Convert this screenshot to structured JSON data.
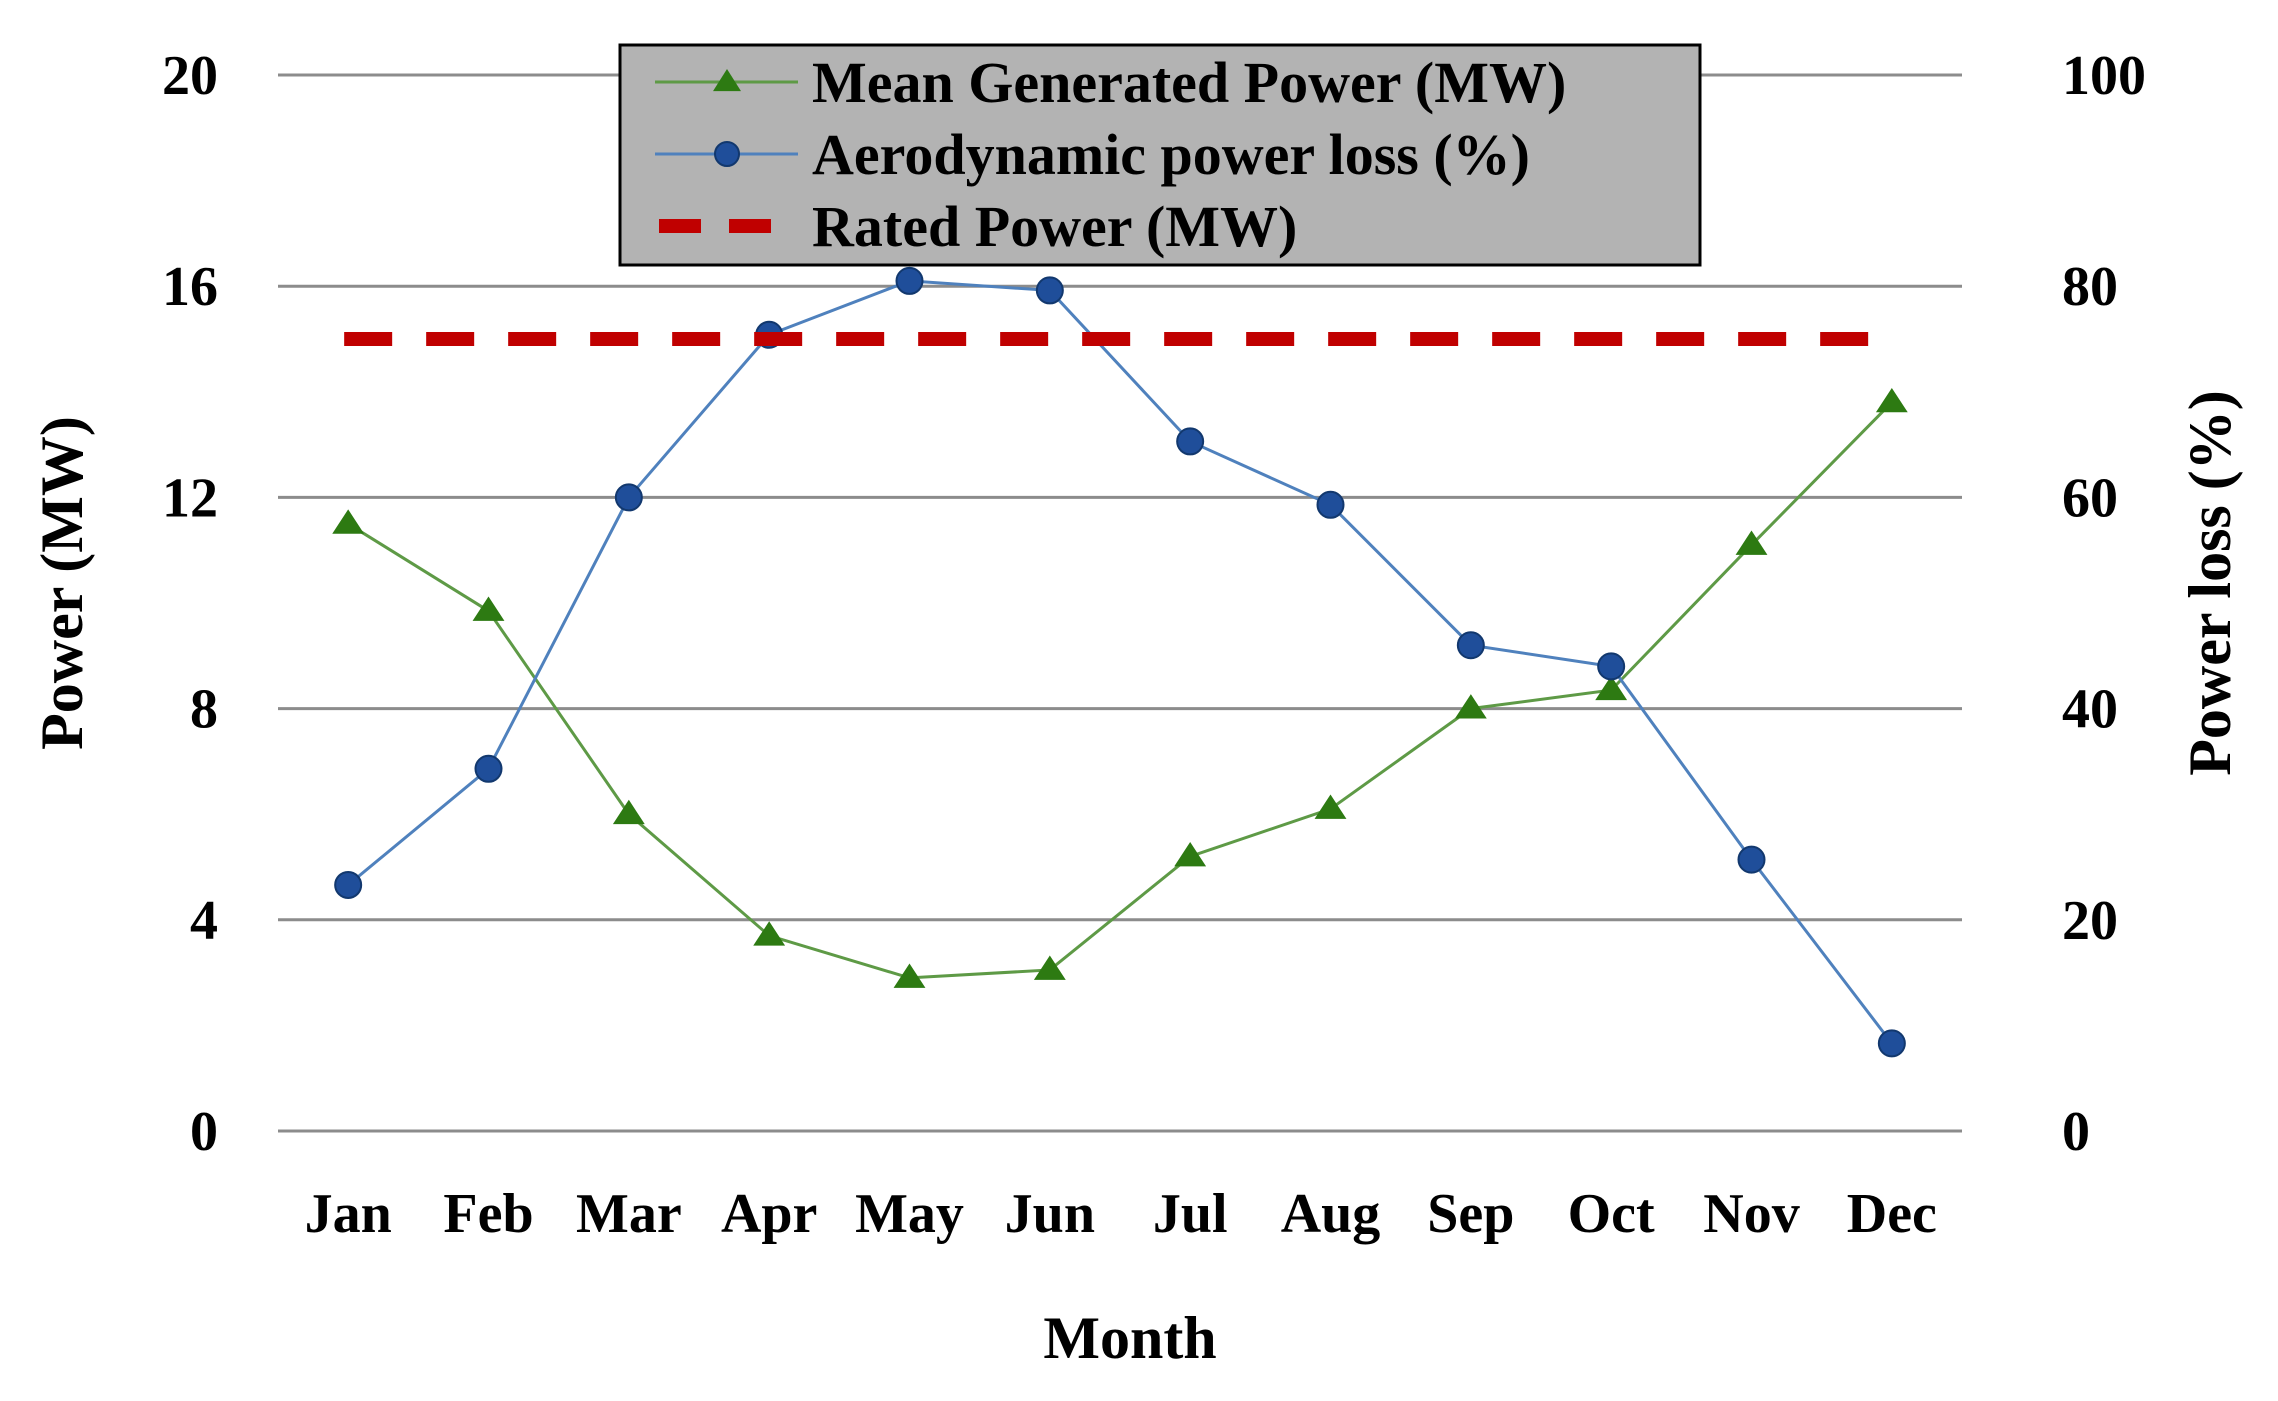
{
  "chart_data": {
    "type": "line",
    "categories": [
      "Jan",
      "Feb",
      "Mar",
      "Apr",
      "May",
      "Jun",
      "Jul",
      "Aug",
      "Sep",
      "Oct",
      "Nov",
      "Dec"
    ],
    "xlabel": "Month",
    "ylabel": "Power (MW)",
    "y2label": "Power loss (%)",
    "ylim": [
      0,
      20
    ],
    "y2lim": [
      0,
      100
    ],
    "yticks": [
      "0",
      "4",
      "8",
      "12",
      "16",
      "20"
    ],
    "y2ticks": [
      "0",
      "20",
      "40",
      "60",
      "80",
      "100"
    ],
    "grid": true,
    "legend_position": "top-center",
    "series": [
      {
        "name": "Mean Generated Power (MW)",
        "axis": "left",
        "marker": "triangle",
        "color": "#5e9a46",
        "marker_color": "#2d7a12",
        "values": [
          11.5,
          9.85,
          6.0,
          3.7,
          2.9,
          3.05,
          5.2,
          6.1,
          8.0,
          8.35,
          11.1,
          13.8
        ]
      },
      {
        "name": "Aerodynamic power loss (%)",
        "axis": "right",
        "marker": "circle",
        "color": "#4f81bd",
        "marker_color": "#1f4e9a",
        "values": [
          23.3,
          34.3,
          60.0,
          75.4,
          80.5,
          79.6,
          65.3,
          59.3,
          46.0,
          44.0,
          25.7,
          8.3
        ]
      },
      {
        "name": "Rated Power (MW)",
        "axis": "left",
        "style": "dashed",
        "color": "#c00000",
        "values": [
          15,
          15,
          15,
          15,
          15,
          15,
          15,
          15,
          15,
          15,
          15,
          15
        ]
      }
    ]
  }
}
